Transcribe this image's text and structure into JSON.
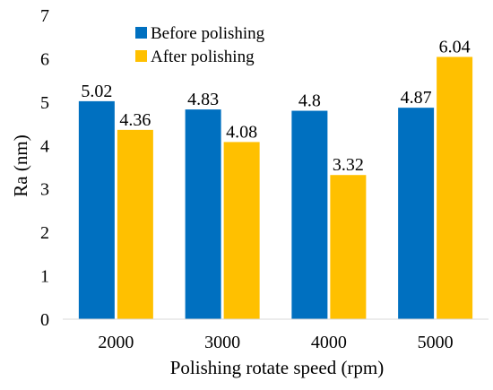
{
  "chart_data": {
    "type": "bar",
    "title": "",
    "xlabel": "Polishing rotate speed (rpm)",
    "ylabel": "Ra (nm)",
    "categories": [
      "2000",
      "3000",
      "4000",
      "5000"
    ],
    "series": [
      {
        "name": "Before polishing",
        "values": [
          5.02,
          4.83,
          4.8,
          4.87
        ],
        "labels": [
          "5.02",
          "4.83",
          "4.8",
          "4.87"
        ],
        "color": "#0070C0"
      },
      {
        "name": "After polishing",
        "values": [
          4.36,
          4.08,
          3.32,
          6.04
        ],
        "labels": [
          "4.36",
          "4.08",
          "3.32",
          "6.04"
        ],
        "color": "#FFC000"
      }
    ],
    "ylim": [
      0,
      7
    ],
    "yticks": [
      "0",
      "1",
      "2",
      "3",
      "4",
      "5",
      "6",
      "7"
    ],
    "grid": false,
    "legend_position": "top-left"
  }
}
